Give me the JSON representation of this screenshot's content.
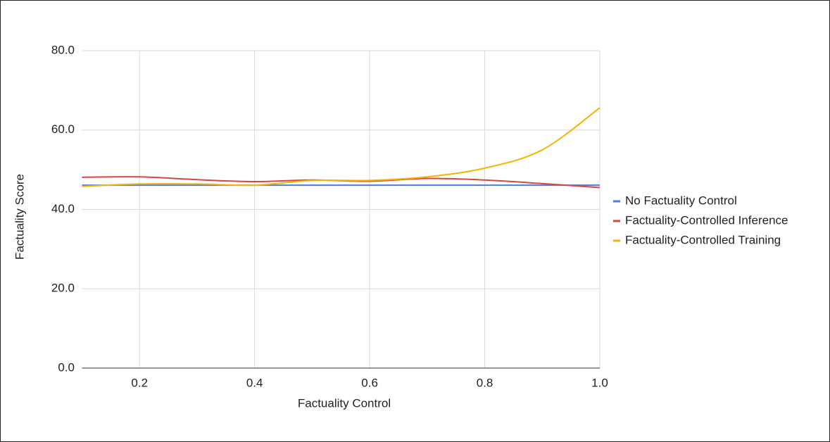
{
  "chart_data": {
    "type": "line",
    "x_label": "Factuality Control",
    "y_label": "Factuality Score",
    "x": [
      0.1,
      0.2,
      0.3,
      0.4,
      0.5,
      0.6,
      0.7,
      0.8,
      0.9,
      1.0
    ],
    "series": [
      {
        "name": "No Factuality Control",
        "color": "#4a7de0",
        "values": [
          46.1,
          46.1,
          46.1,
          46.1,
          46.1,
          46.1,
          46.1,
          46.1,
          46.1,
          46.1
        ]
      },
      {
        "name": "Factuality-Controlled Inference",
        "color": "#d9463d",
        "values": [
          48.1,
          48.2,
          47.5,
          47.0,
          47.4,
          47.1,
          47.8,
          47.4,
          46.5,
          45.5
        ]
      },
      {
        "name": "Factuality-Controlled Training",
        "color": "#f4b400",
        "values": [
          45.8,
          46.4,
          46.4,
          46.1,
          47.3,
          47.3,
          48.2,
          50.4,
          55.0,
          65.6
        ]
      }
    ],
    "xlim": [
      0.1,
      1.0
    ],
    "xticks": [
      0.2,
      0.4,
      0.6,
      0.8,
      {
        "value": 1.0,
        "label": "1.0"
      }
    ],
    "ylim": [
      0,
      80
    ],
    "yticks": [
      {
        "value": 0,
        "label": "0.0"
      },
      {
        "value": 20,
        "label": "20.0"
      },
      {
        "value": 40,
        "label": "40.0"
      },
      {
        "value": 60,
        "label": "60.0"
      },
      {
        "value": 80,
        "label": "80.0"
      }
    ],
    "grid": true,
    "legend": "right"
  }
}
